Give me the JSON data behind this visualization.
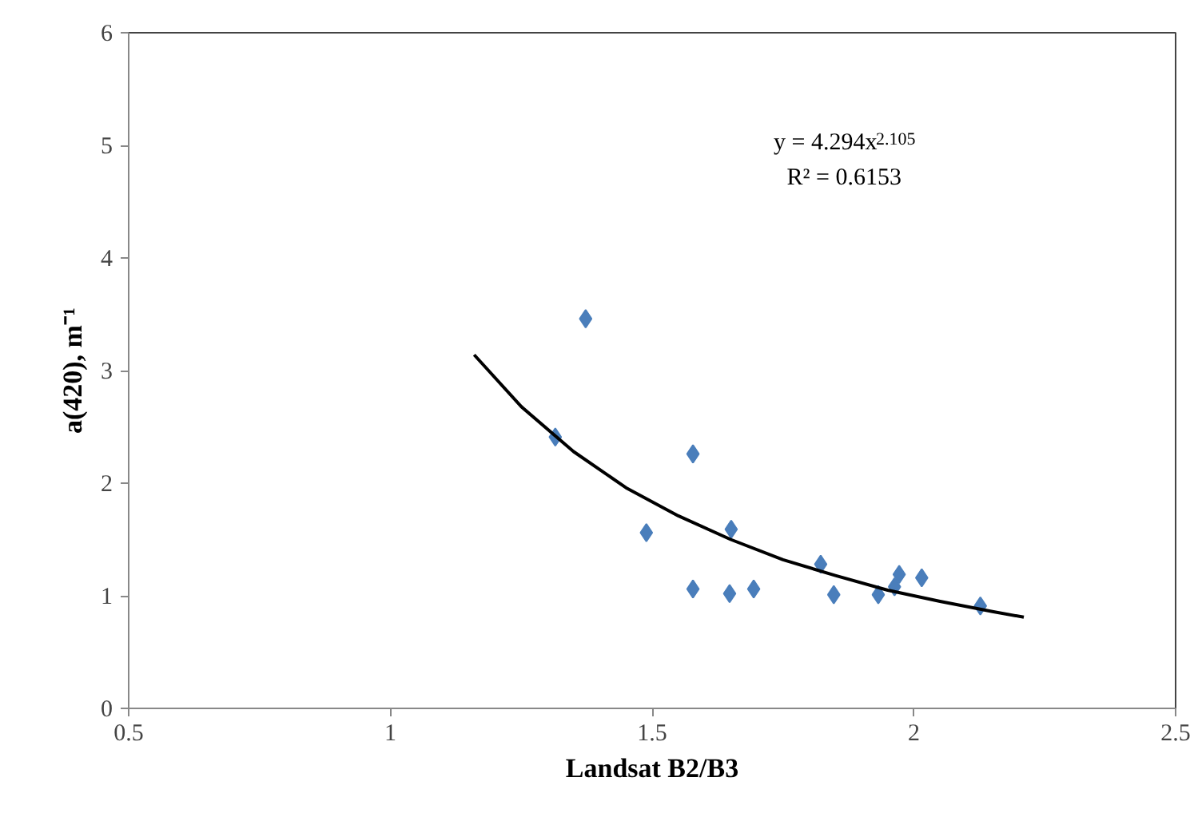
{
  "chart_data": {
    "type": "scatter",
    "xlabel": "Landsat B2/B3",
    "ylabel": "a(420), m⁻¹",
    "annotations": [
      "y = 4.294x$^{2.105}$",
      "R² = 0.6153"
    ],
    "marker": "diamond",
    "grid": false,
    "xlim": [
      0.5,
      2.5
    ],
    "xticks": [
      0.5,
      1,
      1.5,
      2,
      2.5
    ],
    "ylim": [
      0,
      6
    ],
    "yticks": [
      0,
      1,
      2,
      3,
      4,
      5,
      6
    ],
    "series": [
      {
        "color": "#4a7ebb",
        "x": [
          1.373,
          1.315,
          1.578,
          1.489,
          1.651,
          1.578,
          1.648,
          1.694,
          1.822,
          1.847,
          1.932,
          1.963,
          1.972,
          2.015,
          2.127
        ],
        "values": [
          3.46,
          2.41,
          2.26,
          1.56,
          1.59,
          1.06,
          1.02,
          1.06,
          1.28,
          1.01,
          1.01,
          1.08,
          1.19,
          1.16,
          0.91
        ]
      },
      {
        "type": "line",
        "color": "#000000",
        "marker": "none",
        "x": [
          1.16,
          1.25,
          1.35,
          1.45,
          1.55,
          1.65,
          1.75,
          1.85,
          1.95,
          2.05,
          2.15,
          2.21
        ],
        "values": [
          3.14,
          2.68,
          2.28,
          1.96,
          1.71,
          1.5,
          1.32,
          1.18,
          1.05,
          0.95,
          0.86,
          0.81
        ]
      }
    ]
  }
}
